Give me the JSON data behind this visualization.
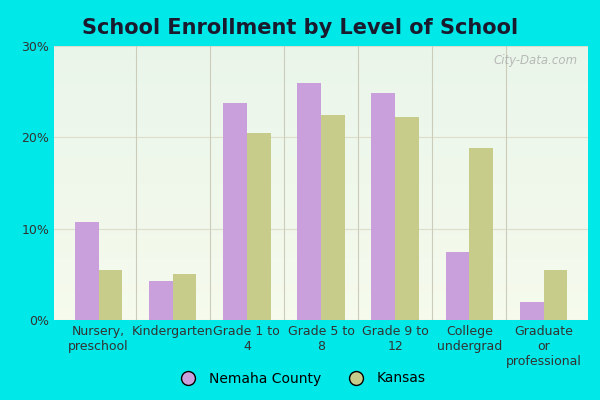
{
  "title": "School Enrollment by Level of School",
  "categories": [
    "Nursery,\npreschool",
    "Kindergarten",
    "Grade 1 to\n4",
    "Grade 5 to\n8",
    "Grade 9 to\n12",
    "College\nundergrad",
    "Graduate\nor\nprofessional"
  ],
  "nemaha_values": [
    10.7,
    4.3,
    23.8,
    26.0,
    24.8,
    7.5,
    2.0
  ],
  "kansas_values": [
    5.5,
    5.0,
    20.5,
    22.5,
    22.2,
    18.8,
    5.5
  ],
  "nemaha_color": "#c9a0dc",
  "kansas_color": "#c8cc8a",
  "ylim": [
    0,
    30
  ],
  "yticks": [
    0,
    10,
    20,
    30
  ],
  "ytick_labels": [
    "0%",
    "10%",
    "20%",
    "30%"
  ],
  "legend_labels": [
    "Nemaha County",
    "Kansas"
  ],
  "bg_top_color": "#eaf5ea",
  "bg_bottom_color": "#f5faec",
  "outer_bg": "#00e8e8",
  "title_fontsize": 15,
  "tick_fontsize": 9,
  "legend_fontsize": 10,
  "bar_width": 0.32,
  "watermark_text": "City-Data.com",
  "grid_color": "#ddddcc",
  "separator_color": "#ccccbb"
}
